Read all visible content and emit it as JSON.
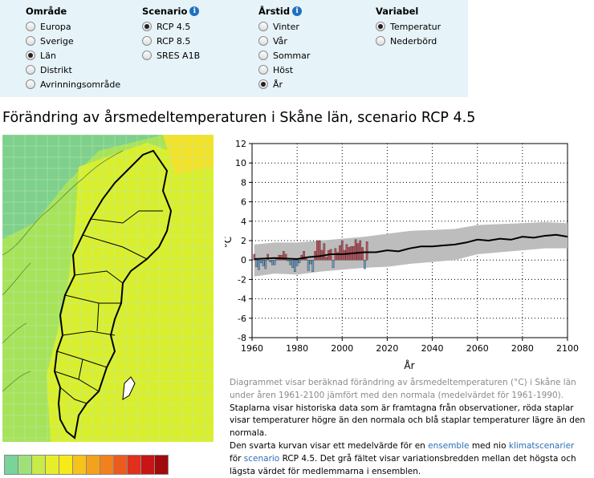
{
  "filters": {
    "area": {
      "title": "Område",
      "options": [
        "Europa",
        "Sverige",
        "Län",
        "Distrikt",
        "Avrinningsområde"
      ],
      "selected": 2
    },
    "scenario": {
      "title": "Scenario",
      "options": [
        "RCP 4.5",
        "RCP 8.5",
        "SRES A1B"
      ],
      "selected": 0
    },
    "season": {
      "title": "Årstid",
      "options": [
        "Vinter",
        "Vår",
        "Sommar",
        "Höst",
        "År"
      ],
      "selected": 4
    },
    "variable": {
      "title": "Variabel",
      "options": [
        "Temperatur",
        "Nederbörd"
      ],
      "selected": 0
    }
  },
  "info_icon": "i",
  "heading": "Förändring av årsmedeltemperaturen i Skåne län, scenario RCP 4.5",
  "map": {
    "colors": {
      "water": "#7ed08c",
      "low": "#a6e35a",
      "mid": "#d9ef2e",
      "high": "#f2e22a",
      "outline": "#000000"
    }
  },
  "legend_colors": [
    "#7ad39b",
    "#9ee07a",
    "#c8ea4a",
    "#e6ee2c",
    "#f7ea1a",
    "#f6c21c",
    "#f4a11c",
    "#f2801c",
    "#ec5b1e",
    "#e0301e",
    "#c81414",
    "#a00a0a"
  ],
  "chart_data": {
    "type": "bar+line",
    "xlabel": "År",
    "ylabel": "°C",
    "xlim": [
      1960,
      2100
    ],
    "ylim": [
      -8,
      12
    ],
    "xticks": [
      1960,
      1980,
      2000,
      2020,
      2040,
      2060,
      2080,
      2100
    ],
    "yticks": [
      -8,
      -6,
      -4,
      -2,
      0,
      2,
      4,
      6,
      8,
      10,
      12
    ],
    "grid": true,
    "bar_colors": {
      "positive": "#c0505a",
      "negative": "#6a9fc8"
    },
    "observed": {
      "years": [
        1961,
        1962,
        1963,
        1964,
        1965,
        1966,
        1967,
        1968,
        1969,
        1970,
        1971,
        1972,
        1973,
        1974,
        1975,
        1976,
        1977,
        1978,
        1979,
        1980,
        1981,
        1982,
        1983,
        1984,
        1985,
        1986,
        1987,
        1988,
        1989,
        1990,
        1991,
        1992,
        1993,
        1994,
        1995,
        1996,
        1997,
        1998,
        1999,
        2000,
        2001,
        2002,
        2003,
        2004,
        2005,
        2006,
        2007,
        2008,
        2009,
        2010,
        2011
      ],
      "values": [
        0.6,
        -0.7,
        -1.0,
        -0.3,
        -0.6,
        -0.9,
        0.6,
        -0.2,
        -0.5,
        -0.5,
        0.2,
        0.5,
        0.5,
        0.9,
        0.6,
        -0.1,
        -0.5,
        -0.8,
        -1.2,
        -0.6,
        -0.3,
        0.5,
        0.9,
        0.3,
        -1.1,
        -0.4,
        -1.2,
        0.9,
        2.0,
        2.0,
        1.0,
        1.7,
        0.3,
        1.0,
        1.1,
        -0.8,
        1.2,
        0.8,
        1.5,
        2.0,
        1.0,
        1.6,
        1.3,
        1.4,
        1.4,
        2.1,
        1.7,
        2.0,
        1.3,
        -0.9,
        1.9
      ]
    },
    "mean": {
      "x": [
        1961,
        1970,
        1980,
        1985,
        1990,
        1995,
        2000,
        2005,
        2010,
        2015,
        2020,
        2025,
        2030,
        2035,
        2040,
        2045,
        2050,
        2055,
        2060,
        2065,
        2070,
        2075,
        2080,
        2085,
        2090,
        2095,
        2100
      ],
      "y": [
        0.1,
        0.2,
        0.1,
        0.3,
        0.4,
        0.6,
        0.6,
        0.7,
        0.8,
        0.8,
        1.0,
        0.9,
        1.2,
        1.4,
        1.4,
        1.5,
        1.6,
        1.8,
        2.1,
        2.0,
        2.2,
        2.1,
        2.4,
        2.3,
        2.5,
        2.6,
        2.4
      ]
    },
    "range": {
      "x": [
        1961,
        1970,
        1980,
        1990,
        2000,
        2010,
        2020,
        2030,
        2040,
        2050,
        2060,
        2070,
        2080,
        2090,
        2100
      ],
      "low": [
        -1.7,
        -1.4,
        -1.5,
        -1.2,
        -1.0,
        -0.8,
        -0.7,
        -0.4,
        -0.2,
        0.0,
        0.6,
        0.8,
        1.0,
        1.2,
        1.2
      ],
      "high": [
        1.6,
        1.8,
        1.8,
        2.0,
        2.2,
        2.4,
        2.7,
        3.0,
        3.1,
        3.2,
        3.6,
        3.7,
        3.8,
        3.9,
        3.8
      ]
    }
  },
  "caption": {
    "intro": "Diagrammet visar beräknad förändring av årsmedeltemperaturen (°C) i Skåne län under åren 1961-2100 jämfört med den normala (medelvärdet för 1961-1990).",
    "bars": "Staplarna visar historiska data som är framtagna från observationer, röda staplar visar temperaturer högre än den normala och blå staplar temperaturer lägre än den normala.",
    "curve_1": "Den svarta kurvan visar ett medelvärde för en ",
    "link_ensemble": "ensemble",
    "curve_2": " med nio ",
    "link_scenarios": "klimatscenarier",
    "curve_3": "för ",
    "link_scenario": "scenario",
    "curve_4": " RCP 4.5. Det grå fältet visar variationsbredden mellan det högsta och lägsta värdet för medlemmarna i ensemblen."
  }
}
